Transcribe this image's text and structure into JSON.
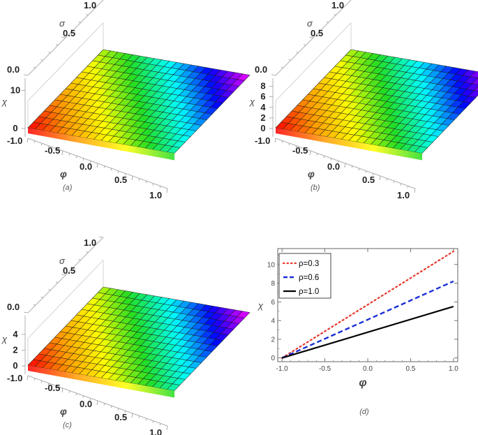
{
  "chart_data": [
    {
      "type": "surface",
      "panel_label": "(a)",
      "rho": 0.3,
      "xlabel": "φ",
      "ylabel": "σ",
      "zlabel": "χ",
      "x_range": [
        -1,
        1
      ],
      "y_range": [
        0,
        1
      ],
      "z_range": [
        0,
        11.4
      ],
      "x_ticks": [
        "-1.0",
        "-0.5",
        "0.0",
        "0.5",
        "1.0"
      ],
      "y_ticks": [
        "0.0",
        "0.5",
        "1.0"
      ],
      "z_ticks": [
        "0",
        "10"
      ],
      "colormap": [
        "#ff0000",
        "#ff9900",
        "#ffff00",
        "#22dd22",
        "#00ffff",
        "#0000ff",
        "#ff00ff"
      ]
    },
    {
      "type": "surface",
      "panel_label": "(b)",
      "rho": 0.6,
      "xlabel": "φ",
      "ylabel": "σ",
      "zlabel": "χ",
      "x_range": [
        -1,
        1
      ],
      "y_range": [
        0,
        1
      ],
      "z_range": [
        0,
        8.2
      ],
      "x_ticks": [
        "-1.0",
        "-0.5",
        "0.0",
        "0.5",
        "1.0"
      ],
      "y_ticks": [
        "0.0",
        "0.5",
        "1.0"
      ],
      "z_ticks": [
        "0",
        "2",
        "4",
        "6",
        "8"
      ],
      "colormap": [
        "#ff0000",
        "#ff9900",
        "#ffff00",
        "#22dd22",
        "#00ffff",
        "#0000ff",
        "#ff00ff"
      ]
    },
    {
      "type": "surface",
      "panel_label": "(c)",
      "rho": 1.0,
      "xlabel": "φ",
      "ylabel": "σ",
      "zlabel": "χ",
      "x_range": [
        -1,
        1
      ],
      "y_range": [
        0,
        1
      ],
      "z_range": [
        0,
        5.5
      ],
      "x_ticks": [
        "-1.0",
        "-0.5",
        "0.0",
        "0.5",
        "1.0"
      ],
      "y_ticks": [
        "0.0",
        "0.5",
        "1.0"
      ],
      "z_ticks": [
        "0",
        "2",
        "4"
      ],
      "colormap": [
        "#ff0000",
        "#ff9900",
        "#ffff00",
        "#22dd22",
        "#00ffff",
        "#0000ff",
        "#ff00ff"
      ]
    },
    {
      "type": "line",
      "panel_label": "(d)",
      "xlabel": "φ",
      "ylabel": "χ",
      "xlim": [
        -1.05,
        1.05
      ],
      "ylim": [
        -0.4,
        11.7
      ],
      "x_ticks": [
        -1.0,
        -0.5,
        0.0,
        0.5,
        1.0
      ],
      "y_ticks": [
        0,
        2,
        4,
        6,
        8,
        10
      ],
      "grid": false,
      "legend_position": "top-left",
      "series": [
        {
          "name": "ρ=0.3",
          "x": [
            -1.0,
            1.0
          ],
          "y": [
            0,
            11.4
          ],
          "color": "#e8382d",
          "style": "dotted"
        },
        {
          "name": "ρ=0.6",
          "x": [
            -1.0,
            1.0
          ],
          "y": [
            0,
            8.2
          ],
          "color": "#1a2fd6",
          "style": "dashed"
        },
        {
          "name": "ρ=1.0",
          "x": [
            -1.0,
            1.0
          ],
          "y": [
            0,
            5.5
          ],
          "color": "#000000",
          "style": "solid"
        }
      ]
    }
  ]
}
